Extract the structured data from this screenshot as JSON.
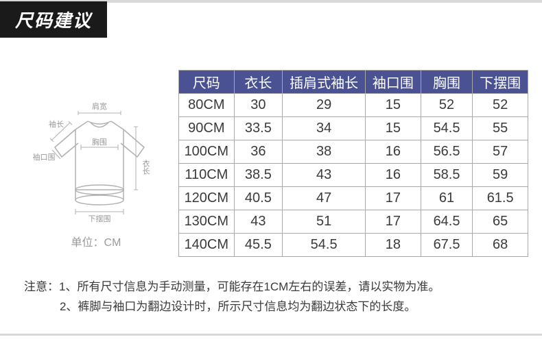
{
  "title": "尺码建议",
  "diagram": {
    "labels": {
      "shoulder": "肩宽",
      "sleeve_len": "袖长",
      "cuff": "袖口围",
      "chest": "胸围",
      "body_len": "衣长",
      "hem": "下摆围"
    },
    "unit_label": "单位：CM"
  },
  "size_table": {
    "columns": [
      "尺码",
      "衣长",
      "插肩式袖长",
      "袖口围",
      "胸围",
      "下摆围"
    ],
    "rows": [
      [
        "80CM",
        "30",
        "29",
        "15",
        "52",
        "52"
      ],
      [
        "90CM",
        "33.5",
        "34",
        "15",
        "54.5",
        "55"
      ],
      [
        "100CM",
        "36",
        "38",
        "16",
        "56.5",
        "57"
      ],
      [
        "110CM",
        "38.5",
        "43",
        "16",
        "58.5",
        "59"
      ],
      [
        "120CM",
        "40.5",
        "47",
        "17",
        "61",
        "61.5"
      ],
      [
        "130CM",
        "43",
        "51",
        "17",
        "64.5",
        "65"
      ],
      [
        "140CM",
        "45.5",
        "54.5",
        "18",
        "67.5",
        "68"
      ]
    ],
    "header_bg": "#4a5294",
    "header_color": "#ffffff",
    "border_color": "#a8a8a8",
    "cell_color": "#3a3a3a"
  },
  "notes": {
    "prefix": "注意：",
    "lines": [
      "1、所有尺寸信息为手动测量，可能存在1CM左右的误差，请以实物为准。",
      "2、裤脚与袖口为翻边设计时，所示尺寸信息均为翻边状态下的长度。"
    ]
  }
}
